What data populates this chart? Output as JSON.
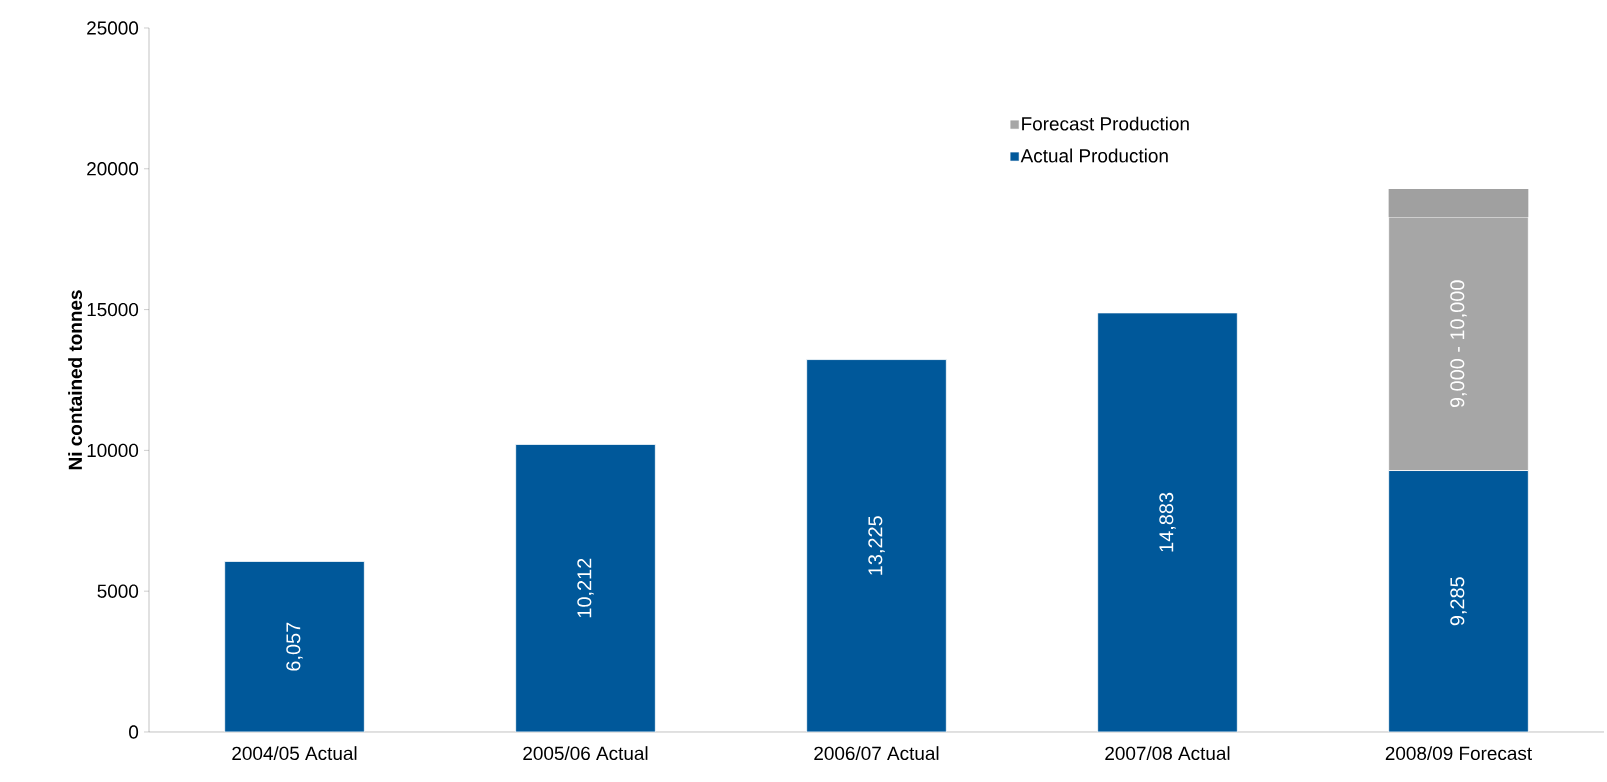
{
  "chart_data": {
    "type": "bar",
    "stacked": true,
    "ylabel": "Ni contained tonnes",
    "categories": [
      "2004/05 Actual",
      "2005/06 Actual",
      "2006/07 Actual",
      "2007/08 Actual",
      "2008/09    Forecast"
    ],
    "series": [
      {
        "name": "Actual Production",
        "color": "#00589a",
        "values": [
          6057,
          10212,
          13225,
          14883,
          9285
        ],
        "value_labels": [
          "6,057",
          "10,212",
          "13,225",
          "14,883",
          "9,285"
        ]
      },
      {
        "name": "Forecast Production",
        "color": "#a6a6a6",
        "values": [
          null,
          null,
          null,
          null,
          9000
        ],
        "value_labels": [
          null,
          null,
          null,
          null,
          "9,000 - 10,000"
        ]
      },
      {
        "color": "#a0a0a0",
        "values": [
          null,
          null,
          null,
          null,
          1000
        ]
      }
    ],
    "ylim": [
      0,
      25000
    ],
    "yticks": [
      0,
      5000,
      10000,
      15000,
      20000,
      25000
    ],
    "legend": "top right",
    "marker": "square",
    "grid": false
  }
}
